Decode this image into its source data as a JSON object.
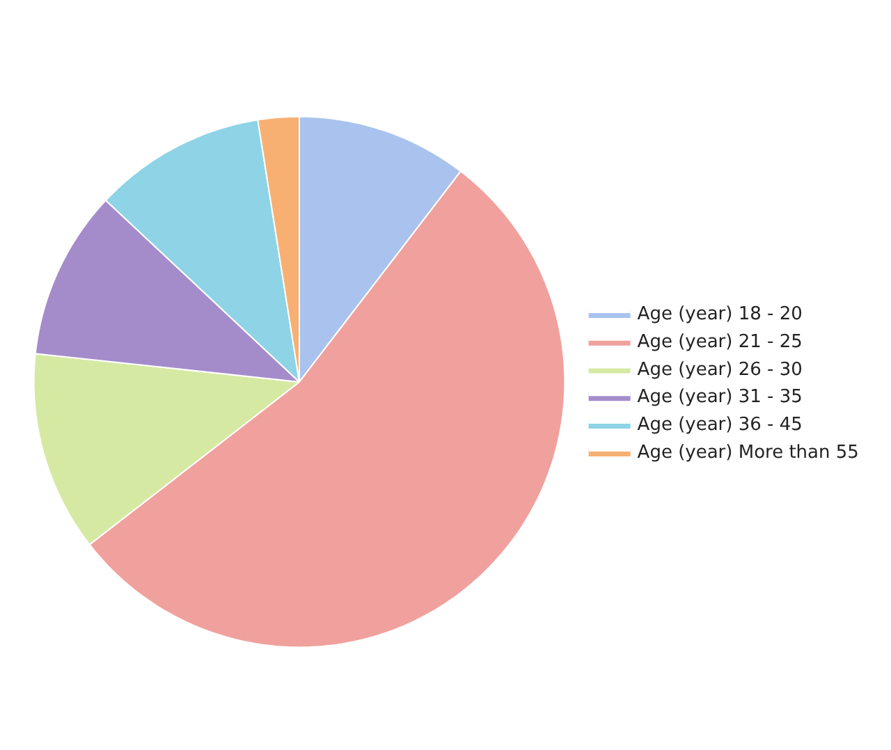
{
  "chart_data": {
    "type": "pie",
    "categories": [
      "Age (year) 18 - 20",
      "Age (year) 21 - 25",
      "Age (year) 26 - 30",
      "Age (year) 31 - 35",
      "Age (year) 36 - 45",
      "Age (year) More than 55"
    ],
    "values": [
      10.4,
      54.1,
      12.2,
      10.3,
      10.5,
      2.5
    ],
    "colors": [
      "#a9c3ee",
      "#f0a19d",
      "#d6e9a3",
      "#a48ccb",
      "#8ed3e6",
      "#f8b072"
    ],
    "legend": "right"
  }
}
